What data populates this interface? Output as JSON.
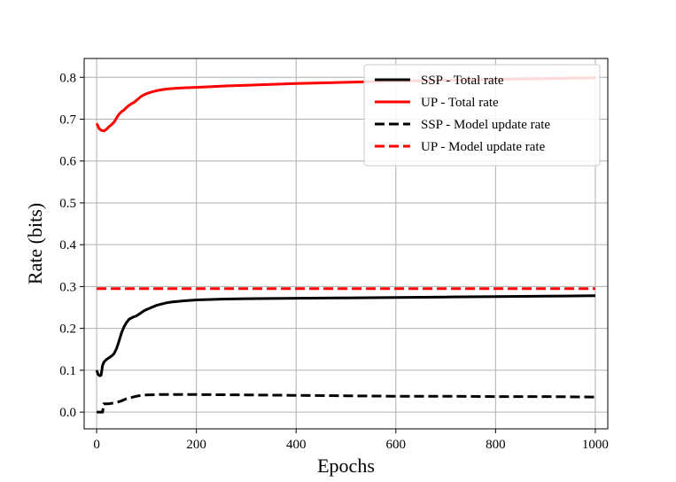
{
  "chart_data": {
    "type": "line",
    "title": "",
    "xlabel": "Epochs",
    "ylabel": "Rate (bits)",
    "xlim": [
      -25,
      1025
    ],
    "ylim": [
      -0.04,
      0.845
    ],
    "xticks": [
      0,
      200,
      400,
      600,
      800,
      1000
    ],
    "xtick_labels": [
      "0",
      "200",
      "400",
      "600",
      "800",
      "1000"
    ],
    "yticks": [
      0.0,
      0.1,
      0.2,
      0.3,
      0.4,
      0.5,
      0.6,
      0.7,
      0.8
    ],
    "ytick_labels": [
      "0.0",
      "0.1",
      "0.2",
      "0.3",
      "0.4",
      "0.5",
      "0.6",
      "0.7",
      "0.8"
    ],
    "grid": true,
    "legend_position": "top-right",
    "series": [
      {
        "name": "SSP - Total rate",
        "color": "#000000",
        "dash": "solid",
        "x": [
          0,
          3,
          6,
          9,
          12,
          15,
          20,
          25,
          30,
          35,
          40,
          45,
          50,
          55,
          60,
          65,
          70,
          75,
          80,
          85,
          90,
          95,
          100,
          110,
          120,
          130,
          140,
          150,
          175,
          200,
          250,
          300,
          400,
          500,
          600,
          700,
          800,
          900,
          1000
        ],
        "y": [
          0.1,
          0.09,
          0.087,
          0.088,
          0.112,
          0.12,
          0.126,
          0.13,
          0.134,
          0.14,
          0.152,
          0.17,
          0.19,
          0.204,
          0.214,
          0.222,
          0.225,
          0.228,
          0.23,
          0.234,
          0.238,
          0.242,
          0.245,
          0.25,
          0.255,
          0.258,
          0.261,
          0.263,
          0.266,
          0.268,
          0.27,
          0.271,
          0.272,
          0.273,
          0.274,
          0.275,
          0.276,
          0.277,
          0.278
        ]
      },
      {
        "name": "UP - Total rate",
        "color": "#ff0000",
        "dash": "solid",
        "x": [
          0,
          5,
          10,
          15,
          20,
          25,
          30,
          35,
          40,
          45,
          50,
          55,
          60,
          65,
          70,
          75,
          80,
          85,
          90,
          95,
          100,
          110,
          120,
          130,
          140,
          150,
          175,
          200,
          250,
          300,
          400,
          500,
          600,
          700,
          800,
          900,
          1000
        ],
        "y": [
          0.69,
          0.677,
          0.673,
          0.672,
          0.676,
          0.682,
          0.687,
          0.693,
          0.703,
          0.712,
          0.718,
          0.722,
          0.728,
          0.733,
          0.737,
          0.74,
          0.745,
          0.75,
          0.755,
          0.758,
          0.761,
          0.765,
          0.768,
          0.77,
          0.772,
          0.773,
          0.775,
          0.776,
          0.779,
          0.781,
          0.785,
          0.788,
          0.791,
          0.793,
          0.795,
          0.797,
          0.799
        ]
      },
      {
        "name": "SSP - Model update rate",
        "color": "#000000",
        "dash": "dashed",
        "x": [
          0,
          5,
          12,
          14,
          20,
          25,
          35,
          45,
          50,
          60,
          70,
          80,
          90,
          100,
          125,
          150,
          200,
          300,
          400,
          500,
          600,
          700,
          800,
          900,
          1000
        ],
        "y": [
          0.0,
          0.0,
          0.0,
          0.02,
          0.02,
          0.02,
          0.022,
          0.025,
          0.027,
          0.032,
          0.035,
          0.038,
          0.04,
          0.041,
          0.042,
          0.042,
          0.042,
          0.041,
          0.04,
          0.039,
          0.038,
          0.038,
          0.037,
          0.037,
          0.036
        ]
      },
      {
        "name": "UP - Model update rate",
        "color": "#ff0000",
        "dash": "dashed",
        "x": [
          0,
          1000
        ],
        "y": [
          0.295,
          0.295
        ]
      }
    ]
  }
}
